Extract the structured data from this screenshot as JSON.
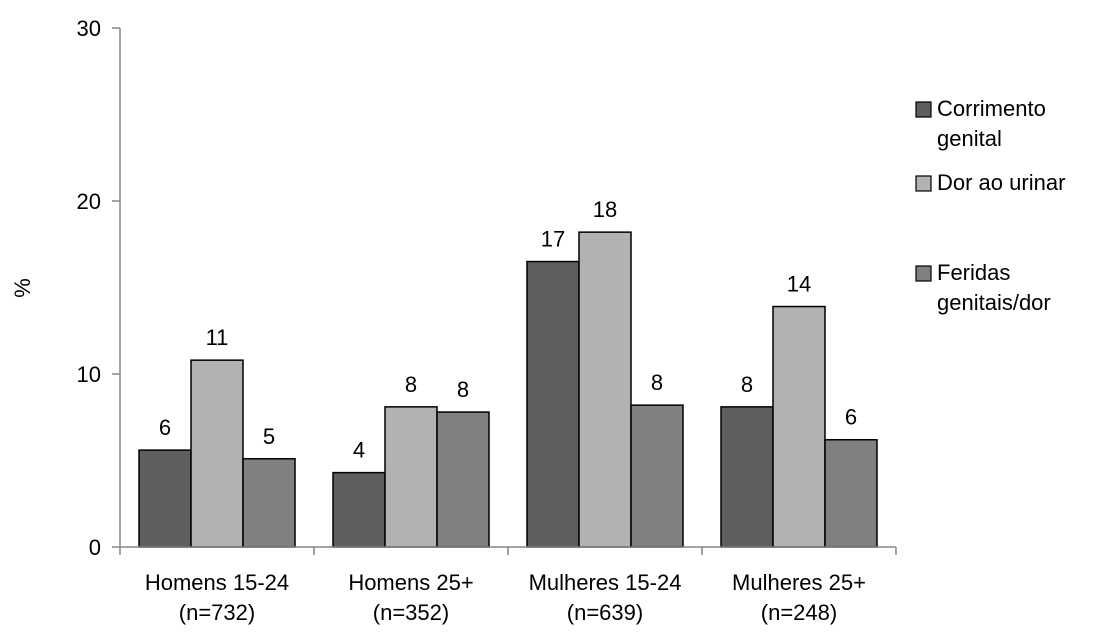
{
  "chart_data": {
    "type": "bar",
    "ylabel": "%",
    "xlabel": "",
    "ylim": [
      0,
      30
    ],
    "yticks": [
      0,
      10,
      20,
      30
    ],
    "grid": false,
    "legend_position": "right",
    "categories": [
      [
        "Homens 15-24",
        "(n=732)"
      ],
      [
        "Homens 25+",
        "(n=352)"
      ],
      [
        "Mulheres 15-24",
        "(n=639)"
      ],
      [
        "Mulheres 25+",
        "(n=248)"
      ]
    ],
    "series": [
      {
        "name": [
          "Corrimento",
          "genital"
        ],
        "color": "#5f5f5f",
        "values": [
          5.6,
          4.3,
          16.5,
          8.1
        ],
        "labels": [
          "6",
          "4",
          "17",
          "8"
        ]
      },
      {
        "name": [
          "Dor ao urinar"
        ],
        "color": "#b2b2b2",
        "values": [
          10.8,
          8.1,
          18.2,
          13.9
        ],
        "labels": [
          "11",
          "8",
          "18",
          "14"
        ]
      },
      {
        "name": [
          "Feridas",
          "genitais/dor"
        ],
        "color": "#808080",
        "values": [
          5.1,
          7.8,
          8.2,
          6.2
        ],
        "labels": [
          "5",
          "8",
          "8",
          "6"
        ]
      }
    ]
  }
}
